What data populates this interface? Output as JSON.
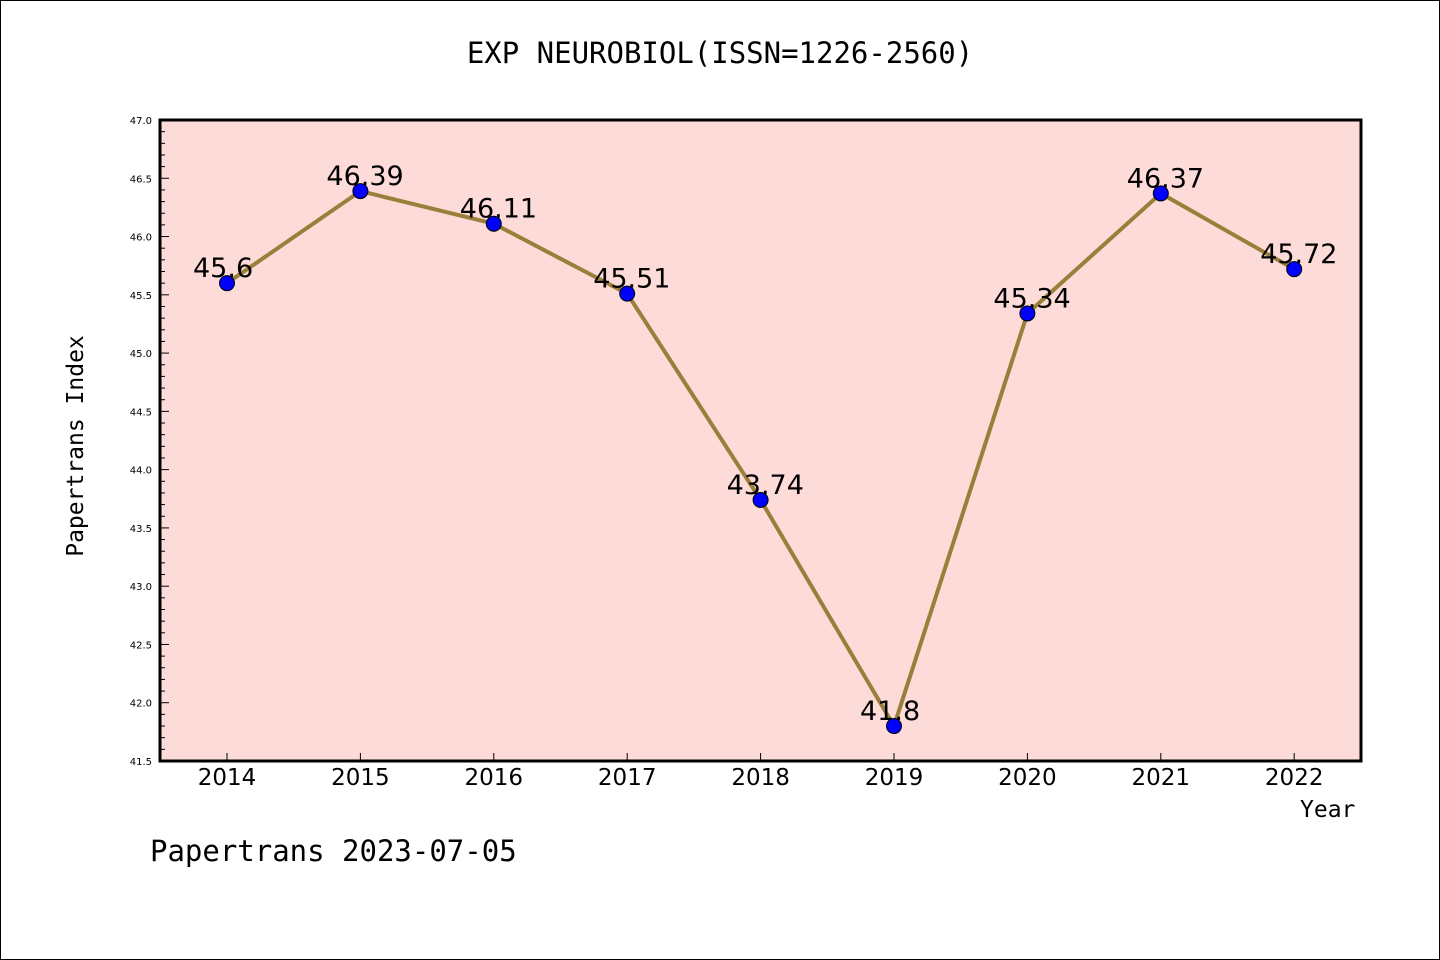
{
  "chart_data": {
    "type": "line",
    "title": "EXP NEUROBIOL(ISSN=1226-2560)",
    "xlabel": "Year",
    "ylabel": "Papertrans Index",
    "categories": [
      "2014",
      "2015",
      "2016",
      "2017",
      "2018",
      "2019",
      "2020",
      "2021",
      "2022"
    ],
    "series": [
      {
        "values": [
          45.6,
          46.39,
          46.11,
          45.51,
          43.74,
          41.8,
          45.34,
          46.37,
          45.72
        ],
        "labels": [
          "45.6",
          "46.39",
          "46.11",
          "45.51",
          "43.74",
          "41.8",
          "45.34",
          "46.37",
          "45.72"
        ]
      }
    ],
    "ylim": [
      41.5,
      47.0
    ],
    "yticks": [
      "41.5",
      "42.0",
      "42.5",
      "43.0",
      "43.5",
      "44.0",
      "44.5",
      "45.0",
      "45.5",
      "46.0",
      "46.5",
      "47.0"
    ],
    "grid": false,
    "colors": {
      "plot_background": "#fddbd9",
      "line": "#9a7f3a",
      "marker": "#0000ff"
    }
  },
  "footer": "Papertrans 2023-07-05"
}
